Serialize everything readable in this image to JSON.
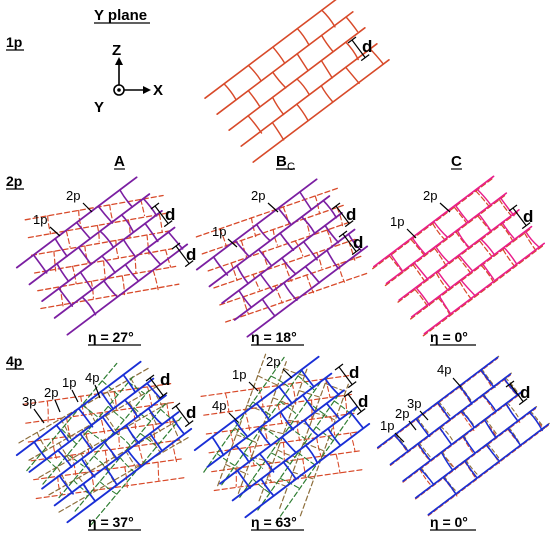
{
  "title": "Y plane",
  "rows": {
    "one": "1p",
    "two": "2p",
    "four": "4p"
  },
  "axes": {
    "z": "Z",
    "x": "X",
    "y": "Y"
  },
  "columns": {
    "a": "A",
    "b_main": "B",
    "b_sub": "C",
    "c": "C"
  },
  "spacing_label": "d",
  "layer_labels": {
    "p1": "1p",
    "p2": "2p",
    "p3": "3p",
    "p4": "4p"
  },
  "eta": {
    "a2": "η = 27°",
    "b2": "η = 18°",
    "c2": "η = 0°",
    "a4": "η = 37°",
    "b4": "η = 63°",
    "c4": "η = 0°"
  },
  "colors": {
    "layer1": "#d84a2a",
    "layer2": "#7b1fa2",
    "layer2_pink": "#e91e8c",
    "layer3": "#2e7d32",
    "layer4": "#1a2fd6",
    "layer3_brown": "#8d6e3c"
  }
}
